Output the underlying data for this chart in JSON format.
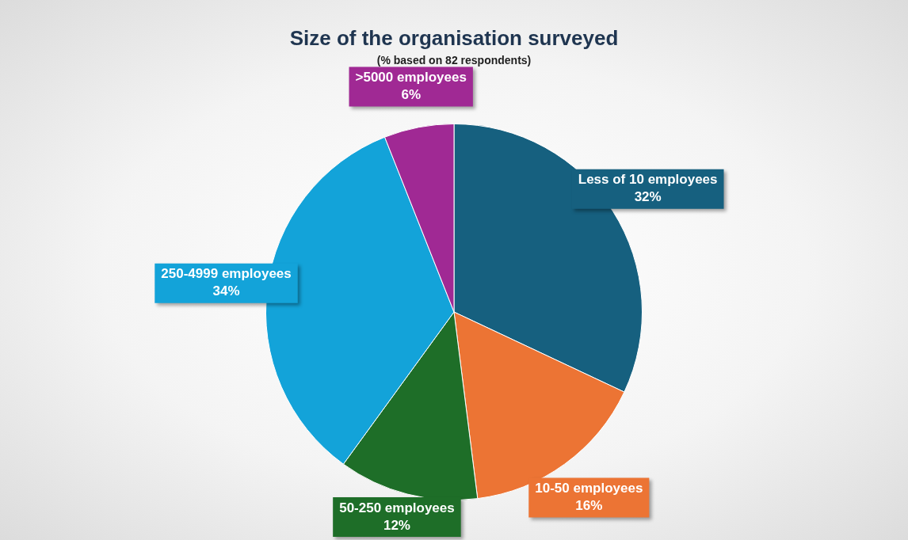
{
  "chart_data": {
    "type": "pie",
    "title": "Size of the organisation surveyed",
    "subtitle": "(% based on 82 respondents)",
    "categories": [
      "Less of 10 employees",
      "10-50 employees",
      "50-250 employees",
      "250-4999 employees",
      ">5000 employees"
    ],
    "values": [
      32,
      16,
      12,
      34,
      6
    ],
    "colors": [
      "#16607f",
      "#ec7434",
      "#1e6e28",
      "#13a3d9",
      "#a02994"
    ],
    "value_labels": [
      "32%",
      "16%",
      "12%",
      "34%",
      "6%"
    ],
    "legend": false
  }
}
